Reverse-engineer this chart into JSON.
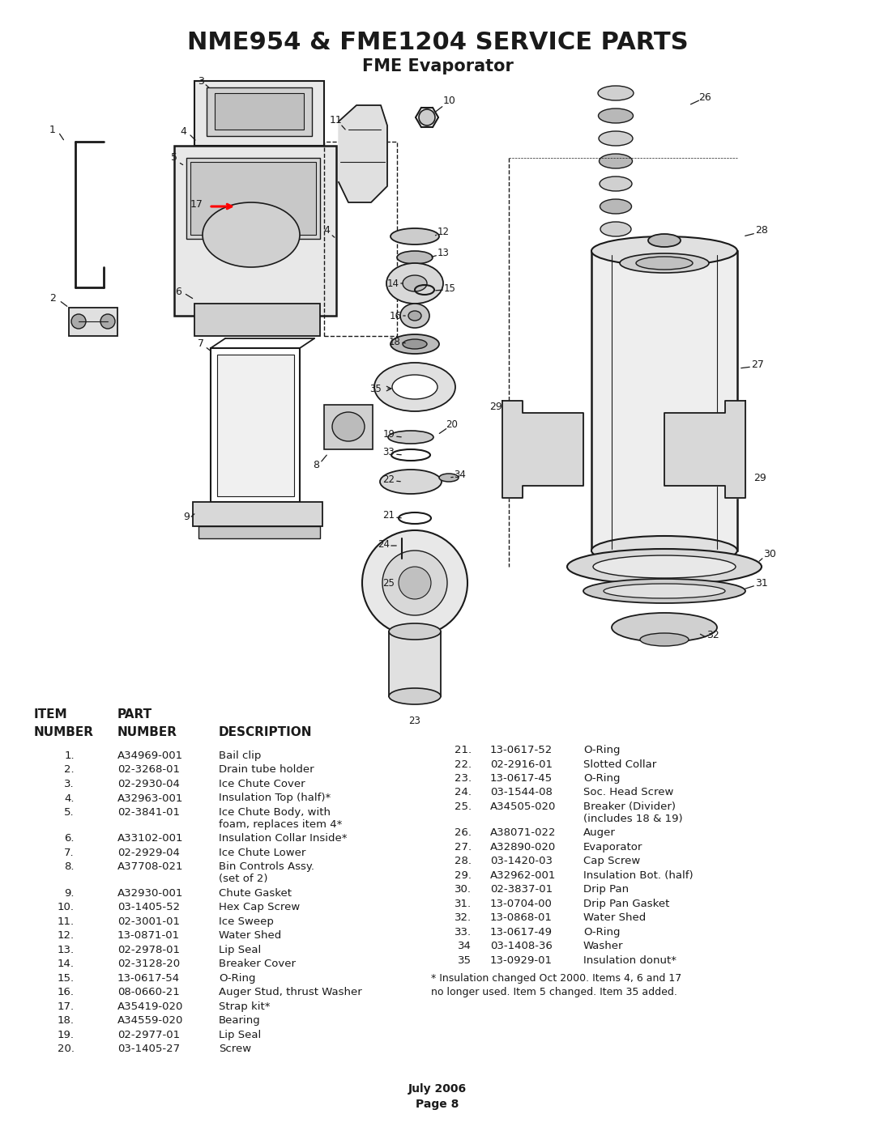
{
  "title": "NME954 & FME1204 SERVICE PARTS",
  "subtitle": "FME Evaporator",
  "background_color": "#ffffff",
  "title_fontsize": 20,
  "subtitle_fontsize": 14,
  "parts_col1": [
    {
      "item": "1.",
      "part": "A34969-001",
      "desc": "Bail clip"
    },
    {
      "item": "2.",
      "part": "02-3268-01",
      "desc": "Drain tube holder"
    },
    {
      "item": "3.",
      "part": "02-2930-04",
      "desc": "Ice Chute Cover"
    },
    {
      "item": "4.",
      "part": "A32963-001",
      "desc": "Insulation Top (half)*"
    },
    {
      "item": "5.",
      "part": "02-3841-01",
      "desc": "Ice Chute Body, with\nfoam, replaces item 4*"
    },
    {
      "item": "6.",
      "part": "A33102-001",
      "desc": "Insulation Collar Inside*"
    },
    {
      "item": "7.",
      "part": "02-2929-04",
      "desc": "Ice Chute Lower"
    },
    {
      "item": "8.",
      "part": "A37708-021",
      "desc": "Bin Controls Assy.\n(set of 2)"
    },
    {
      "item": "9.",
      "part": "A32930-001",
      "desc": "Chute Gasket"
    },
    {
      "item": "10.",
      "part": "03-1405-52",
      "desc": "Hex Cap Screw"
    },
    {
      "item": "11.",
      "part": "02-3001-01",
      "desc": "Ice Sweep"
    },
    {
      "item": "12.",
      "part": "13-0871-01",
      "desc": "Water Shed"
    },
    {
      "item": "13.",
      "part": "02-2978-01",
      "desc": "Lip Seal"
    },
    {
      "item": "14.",
      "part": "02-3128-20",
      "desc": "Breaker Cover"
    },
    {
      "item": "15.",
      "part": "13-0617-54",
      "desc": "O-Ring"
    },
    {
      "item": "16.",
      "part": "08-0660-21",
      "desc": "Auger Stud, thrust Washer"
    },
    {
      "item": "17.",
      "part": "A35419-020",
      "desc": "Strap kit*"
    },
    {
      "item": "18.",
      "part": "A34559-020",
      "desc": "Bearing"
    },
    {
      "item": "19.",
      "part": "02-2977-01",
      "desc": "Lip Seal"
    },
    {
      "item": "20.",
      "part": "03-1405-27",
      "desc": "Screw"
    }
  ],
  "parts_col2": [
    {
      "item": "21.",
      "part": "13-0617-52",
      "desc": "O-Ring"
    },
    {
      "item": "22.",
      "part": "02-2916-01",
      "desc": "Slotted Collar"
    },
    {
      "item": "23.",
      "part": "13-0617-45",
      "desc": "O-Ring"
    },
    {
      "item": "24.",
      "part": "03-1544-08",
      "desc": "Soc. Head Screw"
    },
    {
      "item": "25.",
      "part": "A34505-020",
      "desc": "Breaker (Divider)\n(includes 18 & 19)"
    },
    {
      "item": "26.",
      "part": "A38071-022",
      "desc": "Auger"
    },
    {
      "item": "27.",
      "part": "A32890-020",
      "desc": "Evaporator"
    },
    {
      "item": "28.",
      "part": "03-1420-03",
      "desc": "Cap Screw"
    },
    {
      "item": "29.",
      "part": "A32962-001",
      "desc": "Insulation Bot. (half)"
    },
    {
      "item": "30.",
      "part": "02-3837-01",
      "desc": "Drip Pan"
    },
    {
      "item": "31.",
      "part": "13-0704-00",
      "desc": "Drip Pan Gasket"
    },
    {
      "item": "32.",
      "part": "13-0868-01",
      "desc": "Water Shed"
    },
    {
      "item": "33.",
      "part": "13-0617-49",
      "desc": "O-Ring"
    },
    {
      "item": "34",
      "part": "03-1408-36",
      "desc": "Washer"
    },
    {
      "item": "35",
      "part": "13-0929-01",
      "desc": "Insulation donut*"
    }
  ],
  "footnote1": "* Insulation changed Oct 2000. Items 4, 6 and 17",
  "footnote2": "no longer used. Item 5 changed. Item 35 added.",
  "date": "July 2006",
  "page": "Page 8"
}
